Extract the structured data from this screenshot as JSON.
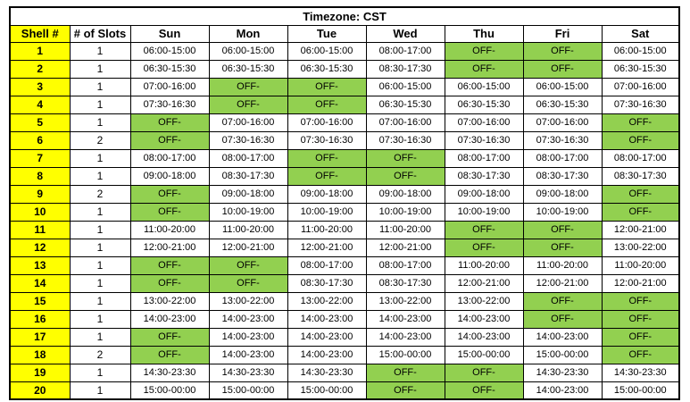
{
  "table": {
    "title": "Timezone: CST",
    "columns": [
      "Shell #",
      "# of Slots",
      "Sun",
      "Mon",
      "Tue",
      "Wed",
      "Thu",
      "Fri",
      "Sat"
    ],
    "off_label": "OFF-",
    "colors": {
      "shell_column_yellow": "#FFFF00",
      "off_cell_green": "#92D050",
      "border_black": "#000000",
      "background_white": "#FFFFFF"
    },
    "rows": [
      {
        "shell": "1",
        "slots": "1",
        "days": [
          "06:00-15:00",
          "06:00-15:00",
          "06:00-15:00",
          "08:00-17:00",
          "OFF-",
          "OFF-",
          "06:00-15:00"
        ]
      },
      {
        "shell": "2",
        "slots": "1",
        "days": [
          "06:30-15:30",
          "06:30-15:30",
          "06:30-15:30",
          "08:30-17:30",
          "OFF-",
          "OFF-",
          "06:30-15:30"
        ]
      },
      {
        "shell": "3",
        "slots": "1",
        "days": [
          "07:00-16:00",
          "OFF-",
          "OFF-",
          "06:00-15:00",
          "06:00-15:00",
          "06:00-15:00",
          "07:00-16:00"
        ]
      },
      {
        "shell": "4",
        "slots": "1",
        "days": [
          "07:30-16:30",
          "OFF-",
          "OFF-",
          "06:30-15:30",
          "06:30-15:30",
          "06:30-15:30",
          "07:30-16:30"
        ]
      },
      {
        "shell": "5",
        "slots": "1",
        "days": [
          "OFF-",
          "07:00-16:00",
          "07:00-16:00",
          "07:00-16:00",
          "07:00-16:00",
          "07:00-16:00",
          "OFF-"
        ]
      },
      {
        "shell": "6",
        "slots": "2",
        "days": [
          "OFF-",
          "07:30-16:30",
          "07:30-16:30",
          "07:30-16:30",
          "07:30-16:30",
          "07:30-16:30",
          "OFF-"
        ]
      },
      {
        "shell": "7",
        "slots": "1",
        "days": [
          "08:00-17:00",
          "08:00-17:00",
          "OFF-",
          "OFF-",
          "08:00-17:00",
          "08:00-17:00",
          "08:00-17:00"
        ]
      },
      {
        "shell": "8",
        "slots": "1",
        "days": [
          "09:00-18:00",
          "08:30-17:30",
          "OFF-",
          "OFF-",
          "08:30-17:30",
          "08:30-17:30",
          "08:30-17:30"
        ]
      },
      {
        "shell": "9",
        "slots": "2",
        "days": [
          "OFF-",
          "09:00-18:00",
          "09:00-18:00",
          "09:00-18:00",
          "09:00-18:00",
          "09:00-18:00",
          "OFF-"
        ]
      },
      {
        "shell": "10",
        "slots": "1",
        "days": [
          "OFF-",
          "10:00-19:00",
          "10:00-19:00",
          "10:00-19:00",
          "10:00-19:00",
          "10:00-19:00",
          "OFF-"
        ]
      },
      {
        "shell": "11",
        "slots": "1",
        "days": [
          "11:00-20:00",
          "11:00-20:00",
          "11:00-20:00",
          "11:00-20:00",
          "OFF-",
          "OFF-",
          "12:00-21:00"
        ]
      },
      {
        "shell": "12",
        "slots": "1",
        "days": [
          "12:00-21:00",
          "12:00-21:00",
          "12:00-21:00",
          "12:00-21:00",
          "OFF-",
          "OFF-",
          "13:00-22:00"
        ]
      },
      {
        "shell": "13",
        "slots": "1",
        "days": [
          "OFF-",
          "OFF-",
          "08:00-17:00",
          "08:00-17:00",
          "11:00-20:00",
          "11:00-20:00",
          "11:00-20:00"
        ]
      },
      {
        "shell": "14",
        "slots": "1",
        "days": [
          "OFF-",
          "OFF-",
          "08:30-17:30",
          "08:30-17:30",
          "12:00-21:00",
          "12:00-21:00",
          "12:00-21:00"
        ]
      },
      {
        "shell": "15",
        "slots": "1",
        "days": [
          "13:00-22:00",
          "13:00-22:00",
          "13:00-22:00",
          "13:00-22:00",
          "13:00-22:00",
          "OFF-",
          "OFF-"
        ]
      },
      {
        "shell": "16",
        "slots": "1",
        "days": [
          "14:00-23:00",
          "14:00-23:00",
          "14:00-23:00",
          "14:00-23:00",
          "14:00-23:00",
          "OFF-",
          "OFF-"
        ]
      },
      {
        "shell": "17",
        "slots": "1",
        "days": [
          "OFF-",
          "14:00-23:00",
          "14:00-23:00",
          "14:00-23:00",
          "14:00-23:00",
          "14:00-23:00",
          "OFF-"
        ]
      },
      {
        "shell": "18",
        "slots": "2",
        "days": [
          "OFF-",
          "14:00-23:00",
          "14:00-23:00",
          "15:00-00:00",
          "15:00-00:00",
          "15:00-00:00",
          "OFF-"
        ]
      },
      {
        "shell": "19",
        "slots": "1",
        "days": [
          "14:30-23:30",
          "14:30-23:30",
          "14:30-23:30",
          "OFF-",
          "OFF-",
          "14:30-23:30",
          "14:30-23:30"
        ]
      },
      {
        "shell": "20",
        "slots": "1",
        "days": [
          "15:00-00:00",
          "15:00-00:00",
          "15:00-00:00",
          "OFF-",
          "OFF-",
          "14:00-23:00",
          "15:00-00:00"
        ]
      }
    ]
  }
}
